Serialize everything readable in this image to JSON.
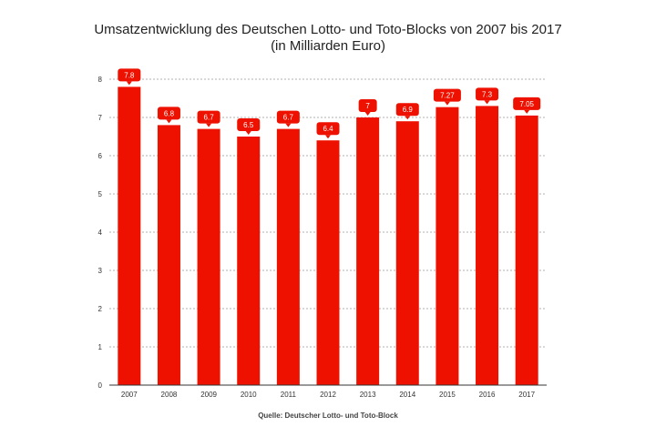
{
  "chart_data": {
    "type": "bar",
    "title": "Umsatzentwicklung des Deutschen Lotto- und Toto-Blocks von 2007 bis 2017",
    "subtitle": "(in Milliarden Euro)",
    "categories": [
      "2007",
      "2008",
      "2009",
      "2010",
      "2011",
      "2012",
      "2013",
      "2014",
      "2015",
      "2016",
      "2017"
    ],
    "values": [
      7.8,
      6.8,
      6.7,
      6.5,
      6.7,
      6.4,
      7,
      6.9,
      7.27,
      7.3,
      7.05
    ],
    "value_labels": [
      "7.8",
      "6.8",
      "6.7",
      "6.5",
      "6.7",
      "6.4",
      "7",
      "6.9",
      "7.27",
      "7.3",
      "7.05"
    ],
    "y_ticks": [
      "0",
      "1",
      "2",
      "3",
      "4",
      "5",
      "6",
      "7",
      "8"
    ],
    "ylim": [
      0,
      8
    ],
    "grid": true,
    "xlabel": "",
    "ylabel": "",
    "source": "Quelle: Deutscher Lotto- und Toto-Block",
    "colors": {
      "bar": "#ee1100",
      "label_bg": "#ee1100",
      "label_text": "#ffffff",
      "grid": "#999999",
      "axis": "#333333"
    }
  }
}
